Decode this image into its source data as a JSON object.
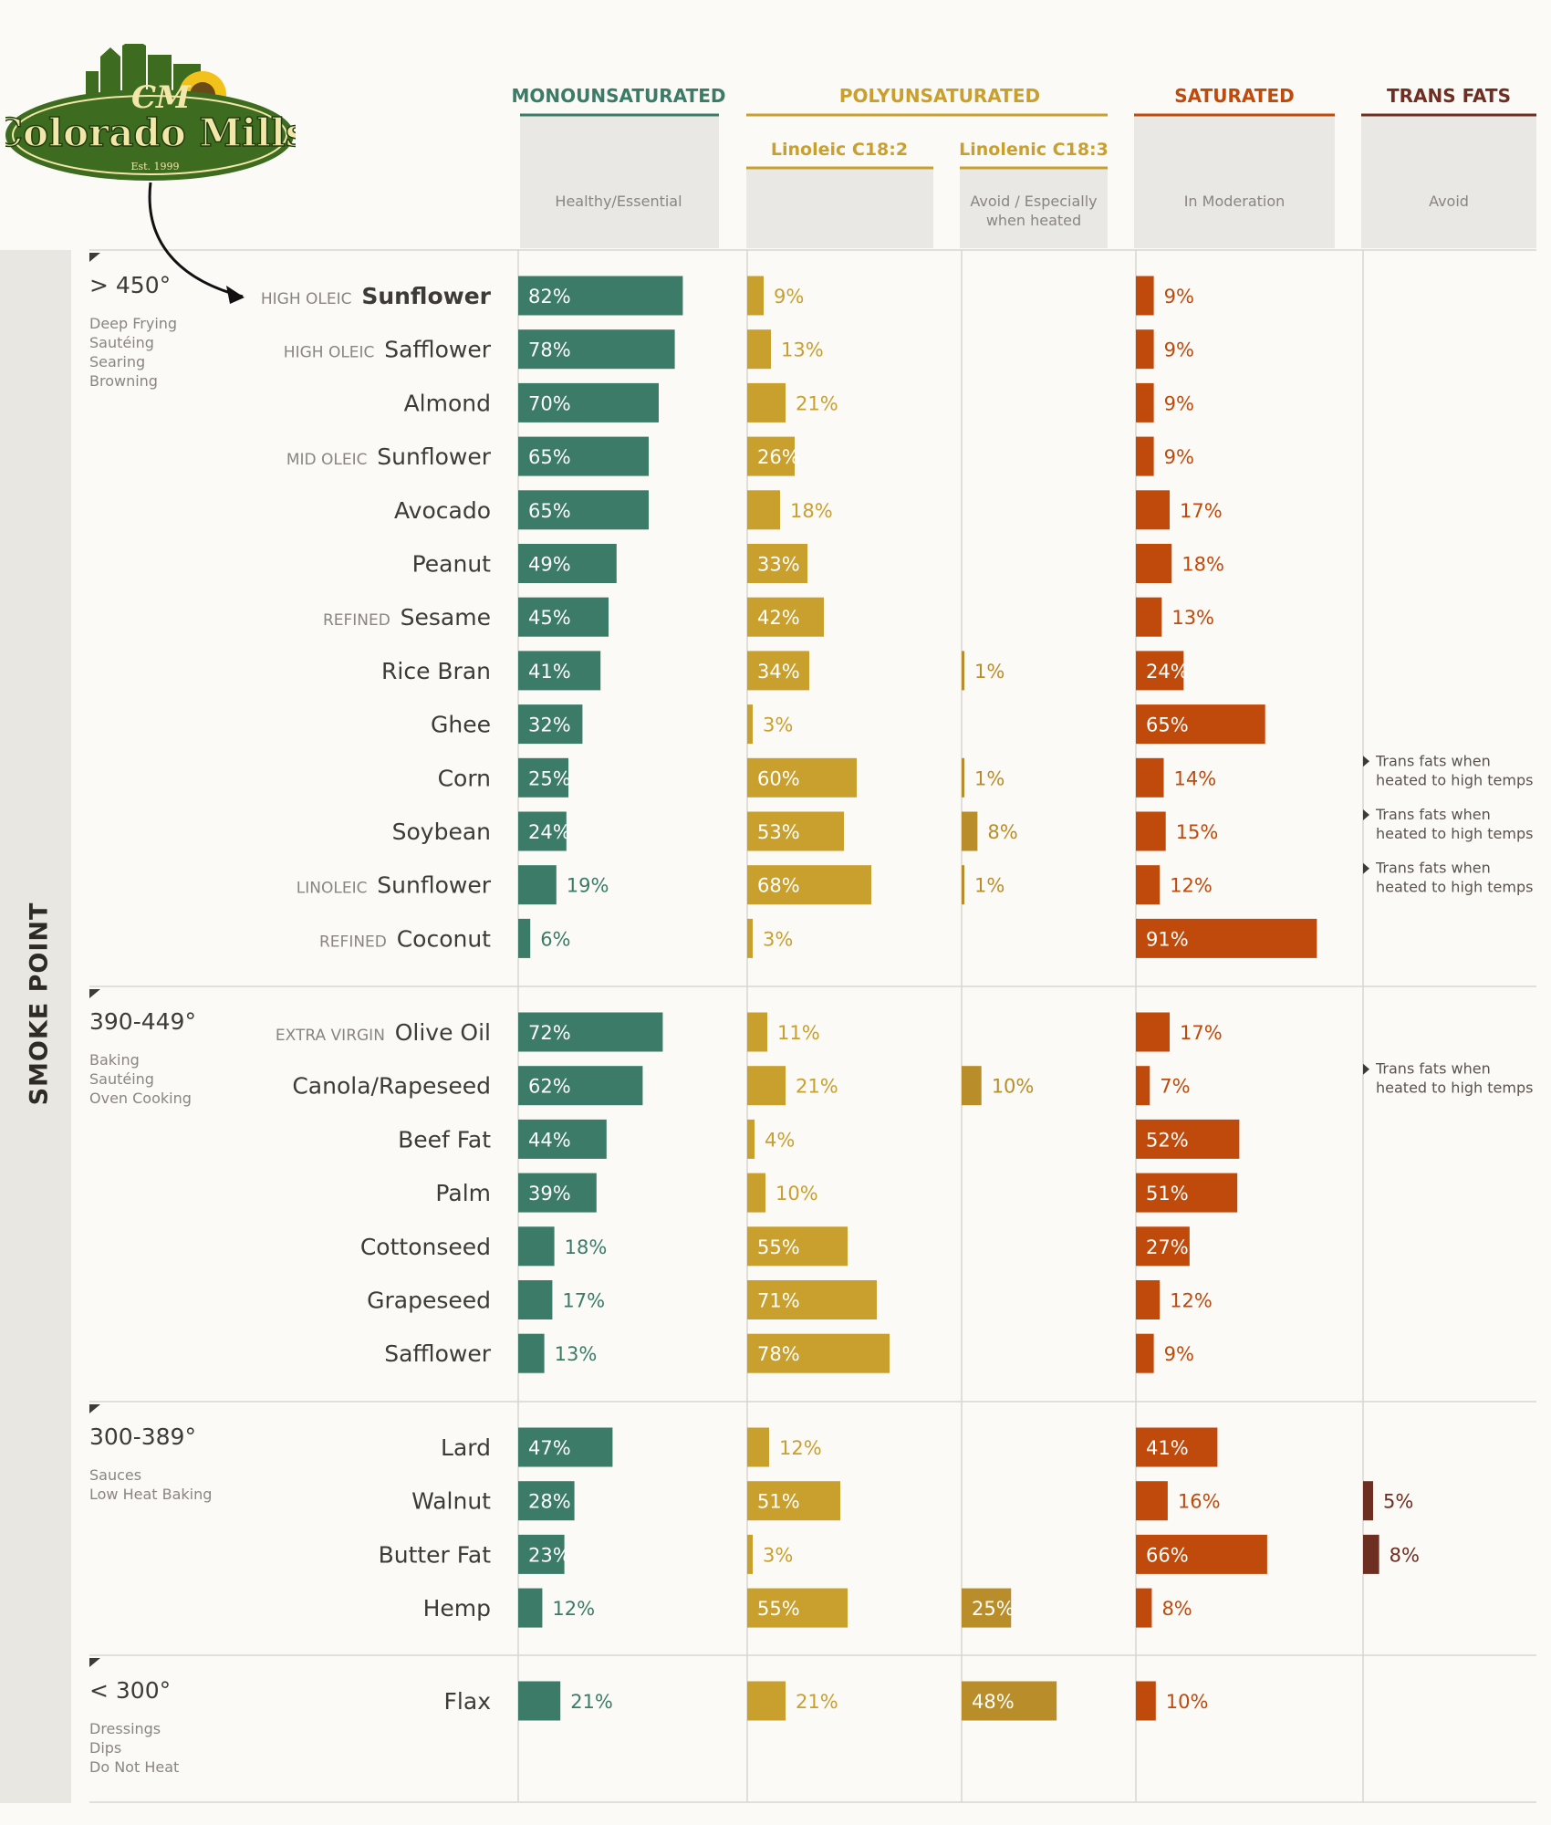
{
  "brand": {
    "name": "Colorado Mills",
    "monogram": "CM",
    "established": "Est. 1999"
  },
  "sidebar_title": "SMOKE POINT",
  "colors": {
    "mono": "#3b7b68",
    "linoleic": "#c9a02e",
    "linolenic": "#b98e2a",
    "saturated": "#c04a0c",
    "trans": "#6e2e22",
    "background": "#fbfaf7",
    "panel": "#e9e8e4",
    "row_label": "#3e3a35",
    "qualifier": "#8a8580",
    "logo_green": "#3d6b1f",
    "logo_cream": "#f2e6a8"
  },
  "columns": [
    {
      "key": "mono",
      "title": "MONOUNSATURATED",
      "note": "Healthy/Essential"
    },
    {
      "key": "poly",
      "title": "POLYUNSATURATED",
      "note": ""
    },
    {
      "key": "sat",
      "title": "SATURATED",
      "note": "In Moderation"
    },
    {
      "key": "trans",
      "title": "TRANS FATS",
      "note": "Avoid"
    }
  ],
  "subcolumns": [
    {
      "key": "linoleic",
      "title": "Linoleic C18:2",
      "note": ""
    },
    {
      "key": "linolenic",
      "title": "Linolenic C18:3",
      "note": [
        "Avoid / Especially",
        "when heated"
      ]
    }
  ],
  "chart_data": {
    "type": "bar",
    "unit": "%",
    "series": [
      {
        "name": "Monounsaturated",
        "key": "mono"
      },
      {
        "name": "Linoleic C18:2",
        "key": "lin"
      },
      {
        "name": "Linolenic C18:3",
        "key": "lnn"
      },
      {
        "name": "Saturated",
        "key": "sat"
      },
      {
        "name": "Trans Fats",
        "key": "tr"
      }
    ],
    "groups": [
      {
        "range": "> 450°",
        "uses": [
          "Deep Frying",
          "Sautéing",
          "Searing",
          "Browning"
        ],
        "oils": [
          {
            "q": "HIGH OLEIC",
            "n": "Sunflower",
            "bold": true,
            "mono": 82,
            "lin": 9,
            "sat": 9
          },
          {
            "q": "HIGH OLEIC",
            "n": "Safflower",
            "mono": 78,
            "lin": 13,
            "sat": 9
          },
          {
            "n": "Almond",
            "mono": 70,
            "lin": 21,
            "sat": 9
          },
          {
            "q": "MID OLEIC",
            "n": "Sunflower",
            "mono": 65,
            "lin": 26,
            "sat": 9
          },
          {
            "n": "Avocado",
            "mono": 65,
            "lin": 18,
            "sat": 17
          },
          {
            "n": "Peanut",
            "mono": 49,
            "lin": 33,
            "sat": 18
          },
          {
            "q": "REFINED",
            "n": "Sesame",
            "mono": 45,
            "lin": 42,
            "sat": 13
          },
          {
            "n": "Rice Bran",
            "mono": 41,
            "lin": 34,
            "lnn": 1,
            "sat": 24
          },
          {
            "n": "Ghee",
            "mono": 32,
            "lin": 3,
            "sat": 65
          },
          {
            "n": "Corn",
            "mono": 25,
            "lin": 60,
            "lnn": 1,
            "sat": 14,
            "tnote": [
              "Trans fats when",
              "heated to high temps"
            ]
          },
          {
            "n": "Soybean",
            "mono": 24,
            "lin": 53,
            "lnn": 8,
            "sat": 15,
            "tnote": [
              "Trans fats when",
              "heated to high temps"
            ]
          },
          {
            "q": "LINOLEIC",
            "n": "Sunflower",
            "mono": 19,
            "lin": 68,
            "lnn": 1,
            "sat": 12,
            "tnote": [
              "Trans fats when",
              "heated to high temps"
            ]
          },
          {
            "q": "REFINED",
            "n": "Coconut",
            "mono": 6,
            "lin": 3,
            "sat": 91
          }
        ]
      },
      {
        "range": "390-449°",
        "uses": [
          "Baking",
          "Sautéing",
          "Oven Cooking"
        ],
        "oils": [
          {
            "q": "EXTRA VIRGIN",
            "n": "Olive Oil",
            "mono": 72,
            "lin": 11,
            "sat": 17
          },
          {
            "n": "Canola/Rapeseed",
            "mono": 62,
            "lin": 21,
            "lnn": 10,
            "sat": 7,
            "tnote": [
              "Trans fats when",
              "heated to high temps"
            ]
          },
          {
            "n": "Beef Fat",
            "mono": 44,
            "lin": 4,
            "sat": 52
          },
          {
            "n": "Palm",
            "mono": 39,
            "lin": 10,
            "sat": 51
          },
          {
            "n": "Cottonseed",
            "mono": 18,
            "lin": 55,
            "sat": 27
          },
          {
            "n": "Grapeseed",
            "mono": 17,
            "lin": 71,
            "sat": 12
          },
          {
            "n": "Safflower",
            "mono": 13,
            "lin": 78,
            "sat": 9
          }
        ]
      },
      {
        "range": "300-389°",
        "uses": [
          "Sauces",
          "Low Heat Baking"
        ],
        "oils": [
          {
            "n": "Lard",
            "mono": 47,
            "lin": 12,
            "sat": 41
          },
          {
            "n": "Walnut",
            "mono": 28,
            "lin": 51,
            "sat": 16,
            "tr": 5
          },
          {
            "n": "Butter Fat",
            "mono": 23,
            "lin": 3,
            "sat": 66,
            "tr": 8
          },
          {
            "n": "Hemp",
            "mono": 12,
            "lin": 55,
            "lnn": 25,
            "sat": 8
          }
        ]
      },
      {
        "range": "< 300°",
        "uses": [
          "Dressings",
          "Dips",
          "Do Not Heat"
        ],
        "oils": [
          {
            "n": "Flax",
            "mono": 21,
            "lin": 21,
            "lnn": 48,
            "sat": 10
          }
        ]
      }
    ]
  }
}
